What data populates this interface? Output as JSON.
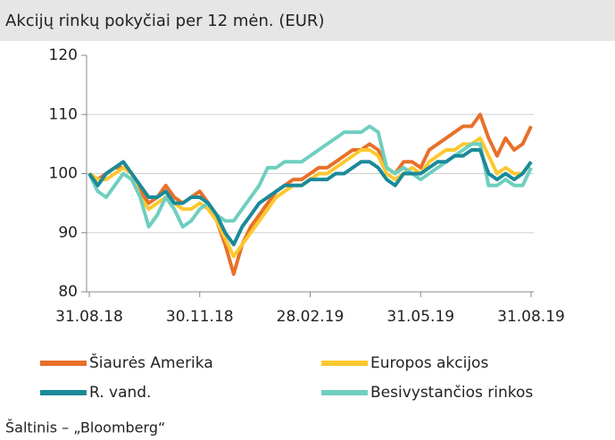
{
  "chart_data": {
    "type": "line",
    "title": "Akcijų rinkų pokyčiai per 12 mėn.  (EUR)",
    "source": "Šaltinis – „Bloomberg“",
    "categories": [
      "31.08.18",
      null,
      null,
      null,
      null,
      null,
      null,
      null,
      null,
      null,
      null,
      null,
      null,
      "30.11.18",
      null,
      null,
      null,
      null,
      null,
      null,
      null,
      null,
      null,
      null,
      null,
      null,
      "28.02.19",
      null,
      null,
      null,
      null,
      null,
      null,
      null,
      null,
      null,
      null,
      null,
      null,
      "31.05.19",
      null,
      null,
      null,
      null,
      null,
      null,
      null,
      null,
      null,
      null,
      null,
      null,
      "31.08.19"
    ],
    "ylim": [
      80,
      120
    ],
    "yticks": [
      80,
      90,
      100,
      110,
      120
    ],
    "grid": true,
    "series": [
      {
        "name": "Šiaurės Amerika",
        "color": "#e8702a",
        "values": [
          100,
          99,
          100,
          101,
          101,
          100,
          97,
          95,
          96,
          98,
          96,
          95,
          96,
          97,
          95,
          92,
          88,
          83,
          88,
          91,
          93,
          95,
          97,
          98,
          99,
          99,
          100,
          101,
          101,
          102,
          103,
          104,
          104,
          105,
          104,
          101,
          100,
          102,
          102,
          101,
          104,
          105,
          106,
          107,
          108,
          108,
          110,
          106,
          103,
          106,
          104,
          105,
          108
        ]
      },
      {
        "name": "Europos akcijos",
        "color": "#fdc82f",
        "values": [
          100,
          99,
          99,
          100,
          101,
          100,
          96,
          94,
          95,
          96,
          95,
          94,
          94,
          95,
          94,
          92,
          89,
          86,
          88,
          90,
          92,
          94,
          96,
          97,
          98,
          98,
          99,
          100,
          100,
          101,
          102,
          103,
          104,
          104,
          103,
          100,
          99,
          100,
          101,
          100,
          102,
          103,
          104,
          104,
          105,
          105,
          106,
          103,
          100,
          101,
          100,
          100,
          102
        ]
      },
      {
        "name": "R. vand.",
        "color": "#1a8a99",
        "values": [
          100,
          98,
          100,
          101,
          102,
          100,
          98,
          96,
          96,
          97,
          95,
          95,
          96,
          96,
          95,
          93,
          90,
          88,
          91,
          93,
          95,
          96,
          97,
          98,
          98,
          98,
          99,
          99,
          99,
          100,
          100,
          101,
          102,
          102,
          101,
          99,
          98,
          100,
          100,
          100,
          101,
          102,
          102,
          103,
          103,
          104,
          104,
          100,
          99,
          100,
          99,
          100,
          102
        ]
      },
      {
        "name": "Besivystančios rinkos",
        "color": "#6fcfbf",
        "values": [
          100,
          97,
          96,
          98,
          100,
          99,
          96,
          91,
          93,
          96,
          94,
          91,
          92,
          94,
          95,
          93,
          92,
          92,
          94,
          96,
          98,
          101,
          101,
          102,
          102,
          102,
          103,
          104,
          105,
          106,
          107,
          107,
          107,
          108,
          107,
          101,
          100,
          101,
          100,
          99,
          100,
          101,
          102,
          103,
          104,
          105,
          105,
          98,
          98,
          99,
          98,
          98,
          101
        ]
      }
    ]
  }
}
